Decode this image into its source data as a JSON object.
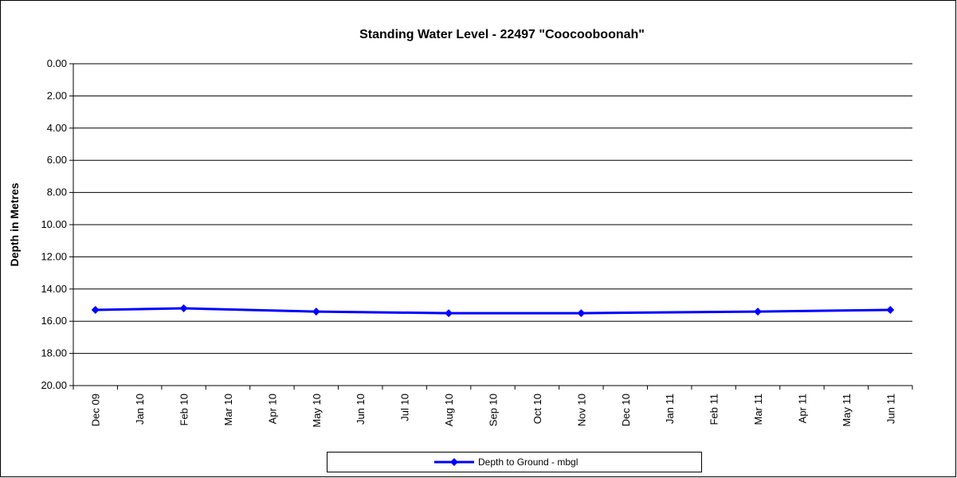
{
  "chart_data": {
    "type": "line",
    "title": "Standing Water Level - 22497 \"Coocooboonah\"",
    "y_label": "Depth in Metres",
    "categories": [
      "Dec 09",
      "Jan 10",
      "Feb 10",
      "Mar 10",
      "Apr 10",
      "May 10",
      "Jun 10",
      "Jul 10",
      "Aug 10",
      "Sep 10",
      "Oct 10",
      "Nov 10",
      "Dec 10",
      "Jan 11",
      "Feb 11",
      "Mar 11",
      "Apr 11",
      "May 11",
      "Jun 11"
    ],
    "series": [
      {
        "name": "Depth to Ground - mbgl",
        "color": "#0000ff",
        "values": [
          15.3,
          null,
          15.2,
          null,
          null,
          15.4,
          null,
          null,
          15.5,
          null,
          null,
          15.5,
          null,
          null,
          null,
          15.4,
          null,
          null,
          15.3
        ]
      }
    ],
    "connect_gaps": true,
    "ylim": [
      0,
      20
    ],
    "y_reversed": true,
    "yticks": [
      {
        "value": 0,
        "label": "0.00"
      },
      {
        "value": 2,
        "label": "2.00"
      },
      {
        "value": 4,
        "label": "4.00"
      },
      {
        "value": 6,
        "label": "6.00"
      },
      {
        "value": 8,
        "label": "8.00"
      },
      {
        "value": 10,
        "label": "10.00"
      },
      {
        "value": 12,
        "label": "12.00"
      },
      {
        "value": 14,
        "label": "14.00"
      },
      {
        "value": 16,
        "label": "16.00"
      },
      {
        "value": 18,
        "label": "18.00"
      },
      {
        "value": 20,
        "label": "20.00"
      }
    ],
    "grid": true,
    "legend": "bottom"
  }
}
